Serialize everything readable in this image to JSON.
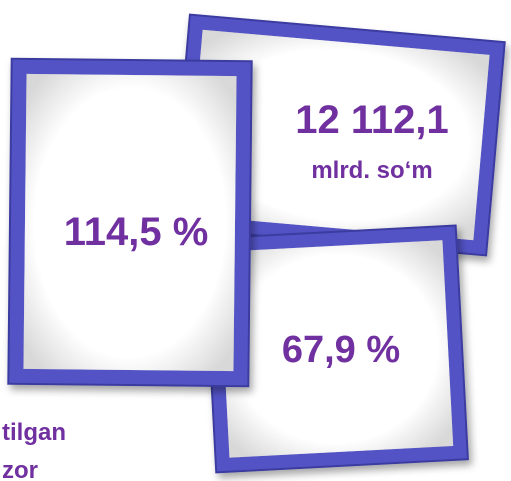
{
  "frames": [
    {
      "value": "114,5 %"
    },
    {
      "value": "12 112,1",
      "unit": "mlrd. so‘m"
    },
    {
      "value": "67,9 %"
    }
  ],
  "caption": {
    "line1": "tilgan",
    "line2": "zor"
  }
}
